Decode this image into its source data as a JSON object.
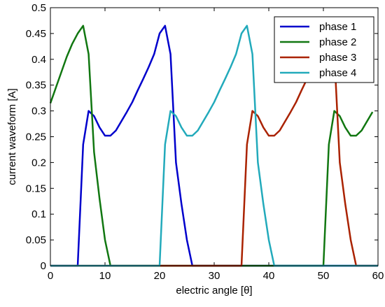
{
  "chart_data": {
    "type": "line",
    "title": "",
    "xlabel": "electric angle [θ]",
    "ylabel": "current waveform [A]",
    "xlim": [
      0,
      60
    ],
    "ylim": [
      0,
      0.5
    ],
    "xticks": [
      0,
      10,
      20,
      30,
      40,
      50,
      60
    ],
    "yticks": [
      0,
      0.05,
      0.1,
      0.15,
      0.2,
      0.25,
      0.3,
      0.35,
      0.4,
      0.45,
      0.5
    ],
    "xtick_labels": [
      "0",
      "10",
      "20",
      "30",
      "40",
      "50",
      "60"
    ],
    "ytick_labels": [
      "0",
      "0.05",
      "0.1",
      "0.15",
      "0.2",
      "0.25",
      "0.3",
      "0.35",
      "0.4",
      "0.45",
      "0.5"
    ],
    "grid": false,
    "legend_position": "top-right",
    "series": [
      {
        "name": "phase 1",
        "color": "#0000cc",
        "x": [
          0,
          5,
          6,
          7,
          8,
          9,
          10,
          11,
          12,
          13,
          14,
          15,
          16,
          17,
          18,
          19,
          20,
          21,
          22,
          23,
          24,
          25,
          26,
          27,
          60
        ],
        "y": [
          0,
          0,
          0.235,
          0.3,
          0.29,
          0.268,
          0.252,
          0.252,
          0.262,
          0.28,
          0.298,
          0.317,
          0.34,
          0.362,
          0.385,
          0.41,
          0.45,
          0.465,
          0.41,
          0.2,
          0.12,
          0.05,
          0,
          0,
          0
        ]
      },
      {
        "name": "phase 2",
        "color": "#117711",
        "x": [
          0,
          1,
          2,
          3,
          4,
          5,
          6,
          7,
          8,
          9,
          10,
          11,
          12,
          49,
          50,
          51,
          52,
          53,
          54,
          55,
          56,
          57,
          58,
          59
        ],
        "y": [
          0.315,
          0.345,
          0.375,
          0.405,
          0.43,
          0.45,
          0.465,
          0.41,
          0.22,
          0.13,
          0.05,
          0,
          0,
          0,
          0,
          0.235,
          0.3,
          0.29,
          0.268,
          0.252,
          0.252,
          0.262,
          0.28,
          0.298
        ]
      },
      {
        "name": "phase 3",
        "color": "#aa2200",
        "x": [
          0,
          34,
          35,
          36,
          37,
          38,
          39,
          40,
          41,
          42,
          43,
          44,
          45,
          46,
          47,
          48,
          49,
          50,
          51,
          52,
          53,
          54,
          55,
          56,
          60
        ],
        "y": [
          0,
          0,
          0,
          0.235,
          0.3,
          0.29,
          0.268,
          0.252,
          0.252,
          0.262,
          0.28,
          0.298,
          0.317,
          0.34,
          0.362,
          0.385,
          0.41,
          0.45,
          0.465,
          0.41,
          0.2,
          0.12,
          0.05,
          0,
          0
        ]
      },
      {
        "name": "phase 4",
        "color": "#22aabb",
        "x": [
          0,
          20,
          21,
          22,
          23,
          24,
          25,
          26,
          27,
          28,
          29,
          30,
          31,
          32,
          33,
          34,
          35,
          36,
          37,
          38,
          39,
          40,
          41,
          42,
          60
        ],
        "y": [
          0,
          0,
          0.235,
          0.3,
          0.29,
          0.268,
          0.252,
          0.252,
          0.262,
          0.28,
          0.298,
          0.317,
          0.34,
          0.362,
          0.385,
          0.41,
          0.45,
          0.465,
          0.41,
          0.2,
          0.12,
          0.05,
          0,
          0,
          0
        ]
      }
    ]
  }
}
